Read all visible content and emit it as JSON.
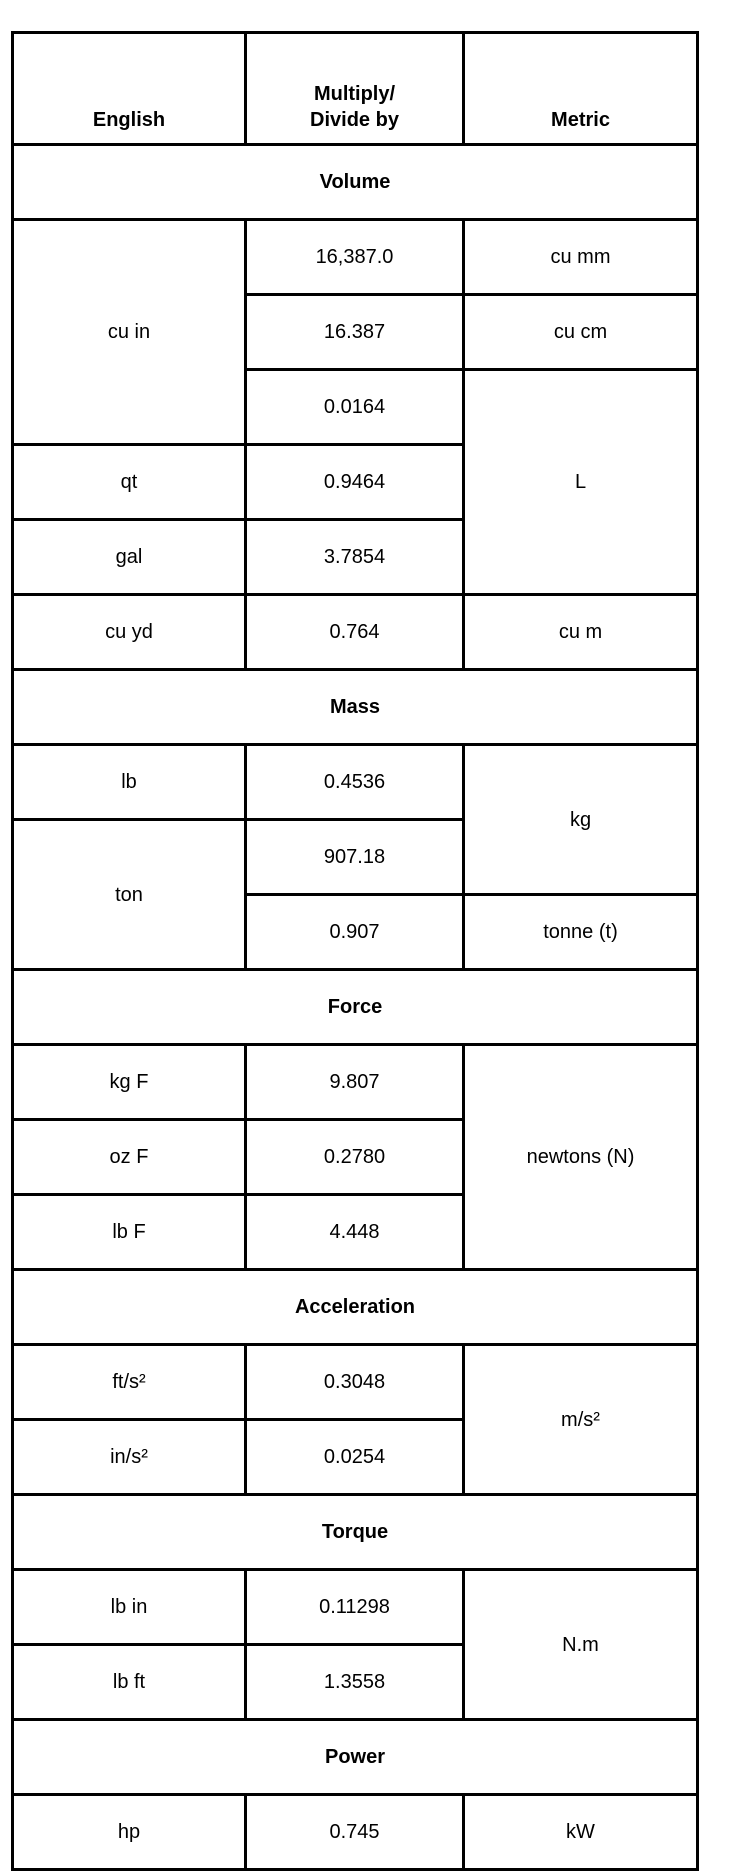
{
  "header": {
    "english": "English",
    "factor_line1": "Multiply/",
    "factor_line2": "Divide by",
    "metric": "Metric"
  },
  "sections": [
    {
      "title": "Volume",
      "rows": [
        [
          {
            "t": "cu in",
            "rs": 3
          },
          {
            "t": "16,387.0"
          },
          {
            "t": "cu mm"
          }
        ],
        [
          {
            "t": "16.387"
          },
          {
            "t": "cu cm"
          }
        ],
        [
          {
            "t": "0.0164"
          },
          {
            "t": "L",
            "rs": 3
          }
        ],
        [
          {
            "t": "qt"
          },
          {
            "t": "0.9464"
          }
        ],
        [
          {
            "t": "gal"
          },
          {
            "t": "3.7854"
          }
        ],
        [
          {
            "t": "cu yd"
          },
          {
            "t": "0.764"
          },
          {
            "t": "cu m"
          }
        ]
      ]
    },
    {
      "title": "Mass",
      "rows": [
        [
          {
            "t": "lb"
          },
          {
            "t": "0.4536"
          },
          {
            "t": "kg",
            "rs": 2
          }
        ],
        [
          {
            "t": "ton",
            "rs": 2
          },
          {
            "t": "907.18"
          }
        ],
        [
          {
            "t": "0.907"
          },
          {
            "t": "tonne (t)"
          }
        ]
      ]
    },
    {
      "title": "Force",
      "rows": [
        [
          {
            "t": "kg F"
          },
          {
            "t": "9.807"
          },
          {
            "t": "newtons (N)",
            "rs": 3
          }
        ],
        [
          {
            "t": "oz F"
          },
          {
            "t": "0.2780"
          }
        ],
        [
          {
            "t": "lb F"
          },
          {
            "t": "4.448"
          }
        ]
      ]
    },
    {
      "title": "Acceleration",
      "rows": [
        [
          {
            "t": "ft/s²"
          },
          {
            "t": "0.3048"
          },
          {
            "t": "m/s²",
            "rs": 2
          }
        ],
        [
          {
            "t": "in/s²"
          },
          {
            "t": "0.0254"
          }
        ]
      ]
    },
    {
      "title": "Torque",
      "rows": [
        [
          {
            "t": "lb in"
          },
          {
            "t": "0.11298"
          },
          {
            "t": "N.m",
            "rs": 2
          }
        ],
        [
          {
            "t": "lb ft"
          },
          {
            "t": "1.3558"
          }
        ]
      ]
    },
    {
      "title": "Power",
      "rows": [
        [
          {
            "t": "hp"
          },
          {
            "t": "0.745"
          },
          {
            "t": "kW"
          }
        ]
      ]
    }
  ]
}
